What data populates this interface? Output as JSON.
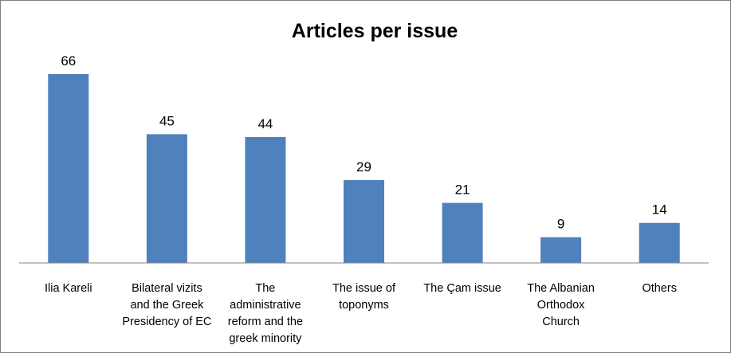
{
  "chart_data": {
    "type": "bar",
    "title": "Articles per issue",
    "xlabel": "",
    "ylabel": "",
    "categories": [
      "Ilia Kareli",
      "Bilateral vizits and the Greek Presidency of EC",
      "The administrative reform and the greek minority",
      "The issue of toponyms",
      "The Çam issue",
      "The Albanian Orthodox Church",
      "Others"
    ],
    "category_lines": [
      [
        "Ilia Kareli"
      ],
      [
        "Bilateral vizits",
        "and the Greek",
        "Presidency of EC"
      ],
      [
        "The",
        "administrative",
        "reform and the",
        "greek minority"
      ],
      [
        "The issue of",
        "toponyms"
      ],
      [
        "The Çam issue"
      ],
      [
        "The Albanian",
        "Orthodox",
        "Church"
      ],
      [
        "Others"
      ]
    ],
    "values": [
      66,
      45,
      44,
      29,
      21,
      9,
      14
    ],
    "data_labels": [
      "66",
      "45",
      "44",
      "29",
      "21",
      "9",
      "14"
    ],
    "highlight_index": 0,
    "ylim": [
      0,
      66
    ],
    "grid": false,
    "legend": "none",
    "bar_color": "#4f81bd",
    "highlight_label_color": "#ff0000",
    "label_color": "#000000",
    "axis_color": "#868686"
  }
}
